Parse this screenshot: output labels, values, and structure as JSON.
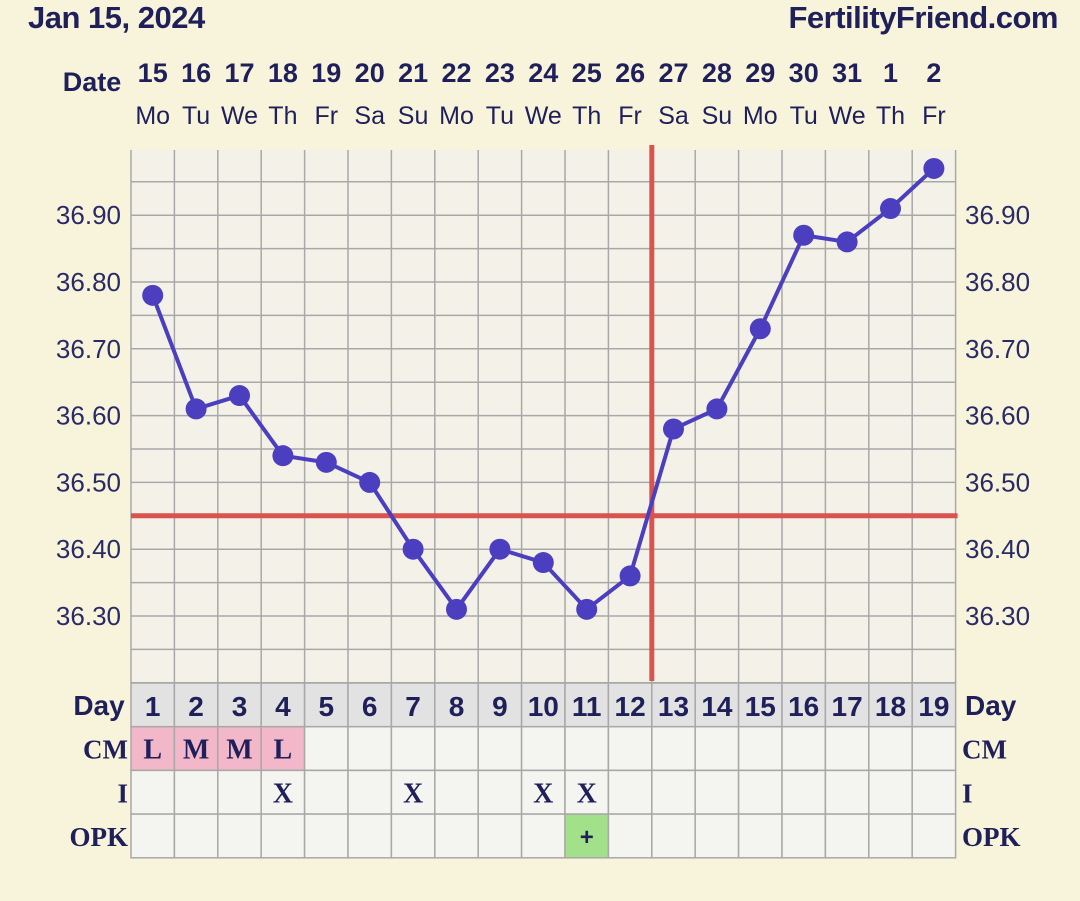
{
  "header": {
    "date": "Jan 15, 2024",
    "site": "FertilityFriend.com"
  },
  "labels": {
    "date_row": "Date",
    "day_row": "Day",
    "cm_row": "CM",
    "i_row": "I",
    "opk_row": "OPK"
  },
  "colors": {
    "background": "#f8f4dc",
    "plot_bg": "#f4f2e8",
    "grid": "#a8a8a8",
    "series": "#4b3fc0",
    "threshold": "#d9534f",
    "cm_cell": "#f2b8c9",
    "opk_positive": "#a3e08a"
  },
  "chart_data": {
    "type": "line",
    "dates": [
      "15",
      "16",
      "17",
      "18",
      "19",
      "20",
      "21",
      "22",
      "23",
      "24",
      "25",
      "26",
      "27",
      "28",
      "29",
      "30",
      "31",
      "1",
      "2"
    ],
    "weekdays": [
      "Mo",
      "Tu",
      "We",
      "Th",
      "Fr",
      "Sa",
      "Su",
      "Mo",
      "Tu",
      "We",
      "Th",
      "Fr",
      "Sa",
      "Su",
      "Mo",
      "Tu",
      "We",
      "Th",
      "Fr"
    ],
    "days": [
      "1",
      "2",
      "3",
      "4",
      "5",
      "6",
      "7",
      "8",
      "9",
      "10",
      "11",
      "12",
      "13",
      "14",
      "15",
      "16",
      "17",
      "18",
      "19"
    ],
    "temperatures": [
      36.78,
      36.61,
      36.63,
      36.54,
      36.53,
      36.5,
      36.4,
      36.31,
      36.4,
      36.38,
      36.31,
      36.36,
      36.58,
      36.61,
      36.73,
      36.87,
      36.86,
      36.91,
      36.97
    ],
    "ylim": [
      36.2,
      37.0
    ],
    "y_ticks": [
      "36.30",
      "36.40",
      "36.50",
      "36.60",
      "36.70",
      "36.80",
      "36.90"
    ],
    "coverline": 36.45,
    "ovulation_day": 12,
    "cm": [
      "L",
      "M",
      "M",
      "L",
      "",
      "",
      "",
      "",
      "",
      "",
      "",
      "",
      "",
      "",
      "",
      "",
      "",
      "",
      ""
    ],
    "intercourse": [
      "",
      "",
      "",
      "X",
      "",
      "",
      "X",
      "",
      "",
      "X",
      "X",
      "",
      "",
      "",
      "",
      "",
      "",
      "",
      ""
    ],
    "opk": [
      "",
      "",
      "",
      "",
      "",
      "",
      "",
      "",
      "",
      "",
      "+",
      "",
      "",
      "",
      "",
      "",
      "",
      "",
      ""
    ]
  }
}
